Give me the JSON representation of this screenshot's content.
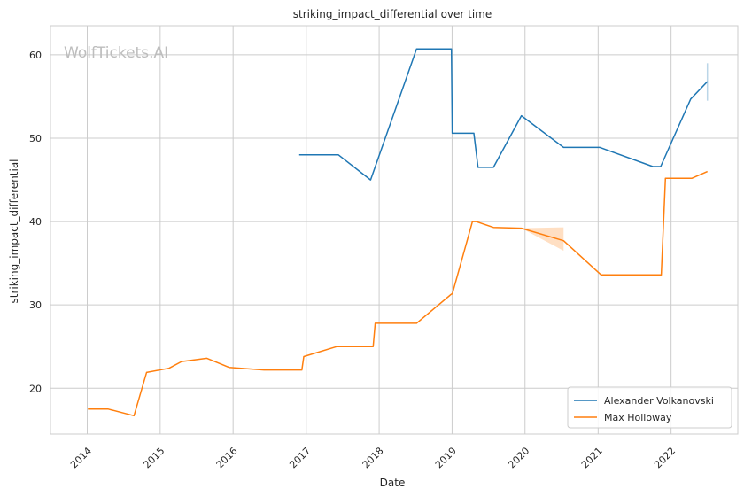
{
  "chart_data": {
    "type": "line",
    "title": "striking_impact_differential over time",
    "xlabel": "Date",
    "ylabel": "striking_impact_differential",
    "watermark": "WolfTickets.AI",
    "x_range": [
      "2013-07-01",
      "2022-12-01"
    ],
    "ylim": [
      14.5,
      63.5
    ],
    "yticks": [
      20,
      30,
      40,
      50,
      60
    ],
    "xticks": [
      "2014",
      "2015",
      "2016",
      "2017",
      "2018",
      "2019",
      "2020",
      "2021",
      "2022"
    ],
    "grid": true,
    "legend_position": "bottom-right",
    "series": [
      {
        "name": "Alexander Volkanovski",
        "color": "#1f77b4",
        "points": [
          [
            "2016-11-27",
            48.0
          ],
          [
            "2017-06-11",
            48.0
          ],
          [
            "2017-11-19",
            45.0
          ],
          [
            "2018-07-07",
            60.7
          ],
          [
            "2018-12-29",
            60.7
          ],
          [
            "2019-01-02",
            50.6
          ],
          [
            "2019-04-20",
            50.6
          ],
          [
            "2019-05-11",
            46.5
          ],
          [
            "2019-07-27",
            46.5
          ],
          [
            "2019-12-14",
            52.7
          ],
          [
            "2020-07-12",
            48.9
          ],
          [
            "2021-01-10",
            48.9
          ],
          [
            "2021-10-02",
            46.6
          ],
          [
            "2021-11-10",
            46.6
          ],
          [
            "2022-04-09",
            54.7
          ],
          [
            "2022-07-02",
            56.8
          ]
        ],
        "band": [
          [
            "2022-07-02",
            54.5,
            59.0
          ]
        ]
      },
      {
        "name": "Max Holloway",
        "color": "#ff7f0e",
        "points": [
          [
            "2014-01-04",
            17.5
          ],
          [
            "2014-04-16",
            17.5
          ],
          [
            "2014-08-23",
            16.7
          ],
          [
            "2014-10-25",
            21.9
          ],
          [
            "2015-02-14",
            22.4
          ],
          [
            "2015-04-18",
            23.2
          ],
          [
            "2015-08-23",
            23.6
          ],
          [
            "2015-12-12",
            22.5
          ],
          [
            "2016-06-04",
            22.2
          ],
          [
            "2016-12-10",
            22.2
          ],
          [
            "2016-12-20",
            23.8
          ],
          [
            "2017-06-03",
            25.0
          ],
          [
            "2017-12-02",
            25.0
          ],
          [
            "2017-12-12",
            27.8
          ],
          [
            "2018-07-07",
            27.8
          ],
          [
            "2018-12-29",
            31.3
          ],
          [
            "2019-01-02",
            31.3
          ],
          [
            "2019-04-13",
            40.0
          ],
          [
            "2019-05-01",
            40.0
          ],
          [
            "2019-07-27",
            39.3
          ],
          [
            "2019-12-14",
            39.2
          ],
          [
            "2020-07-12",
            37.7
          ],
          [
            "2021-01-16",
            33.6
          ],
          [
            "2021-11-13",
            33.6
          ],
          [
            "2021-12-04",
            45.2
          ],
          [
            "2022-04-16",
            45.2
          ],
          [
            "2022-07-02",
            46.0
          ]
        ],
        "band": [
          [
            "2019-12-14",
            39.2,
            39.2
          ],
          [
            "2020-07-12",
            36.5,
            39.3
          ]
        ]
      }
    ]
  }
}
